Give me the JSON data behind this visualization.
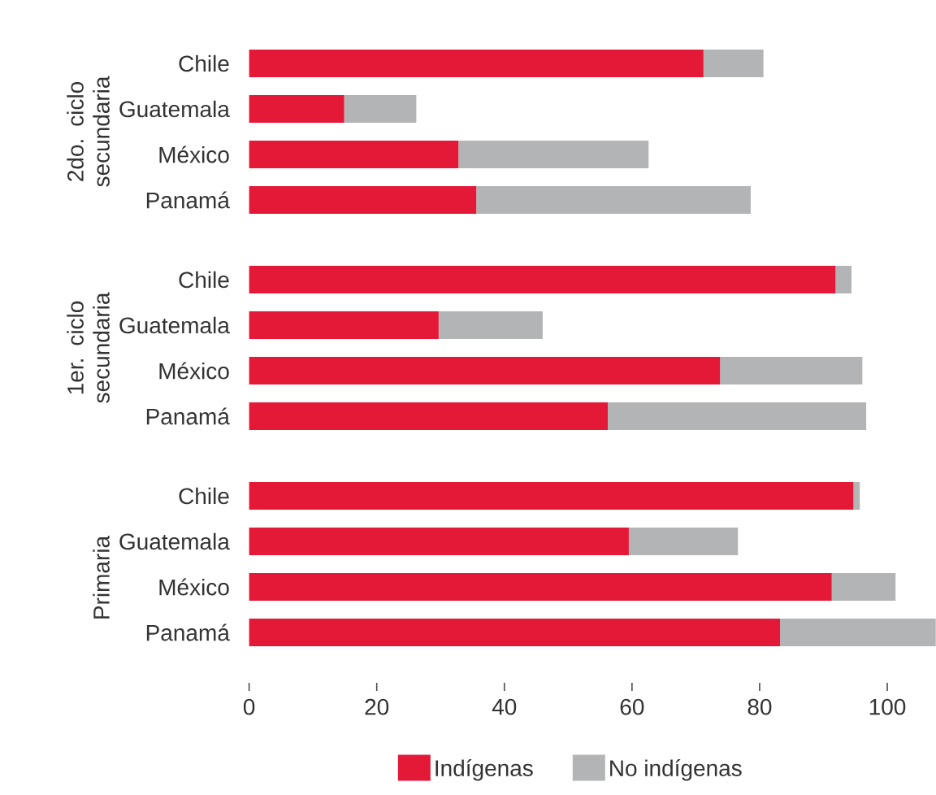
{
  "chart_data": [
    {
      "type": "bar",
      "orientation": "horizontal",
      "stacked": true,
      "ylabel": "2do. ciclo secundaria",
      "categories": [
        "Chile",
        "Guatemala",
        "México",
        "Panamá"
      ],
      "xlim": [
        0,
        100
      ],
      "xticks": [
        0,
        20,
        40,
        60,
        80,
        100
      ],
      "tick_labels": "y",
      "legend": false,
      "series": [
        {
          "color": "#e31937",
          "values": [
            71.2,
            14.9,
            32.8,
            35.6
          ]
        },
        {
          "color": "#b3b4b6",
          "values": [
            9.4,
            11.3,
            29.8,
            43.0
          ]
        }
      ]
    },
    {
      "type": "bar",
      "orientation": "horizontal",
      "stacked": true,
      "ylabel": "1er. ciclo secundaria",
      "categories": [
        "Chile",
        "Guatemala",
        "México",
        "Panamá"
      ],
      "xlim": [
        0,
        100
      ],
      "xticks": [
        0,
        20,
        40,
        60,
        80,
        100
      ],
      "tick_labels": "y",
      "legend": false,
      "series": [
        {
          "color": "#e31937",
          "values": [
            91.9,
            29.7,
            73.8,
            56.2
          ]
        },
        {
          "color": "#b3b4b6",
          "values": [
            2.5,
            16.3,
            22.3,
            40.5
          ]
        }
      ]
    },
    {
      "type": "bar",
      "orientation": "horizontal",
      "stacked": true,
      "ylabel": "Primaria",
      "categories": [
        "Chile",
        "Guatemala",
        "México",
        "Panamá"
      ],
      "xlim": [
        0,
        107.6
      ],
      "xticks": [
        0,
        20,
        40,
        60,
        80,
        100
      ],
      "legend": "bottom",
      "series": [
        {
          "name": "Indígenas",
          "color": "#e31937",
          "values": [
            94.7,
            59.5,
            91.3,
            83.2
          ]
        },
        {
          "name": "No indígenas",
          "color": "#b3b4b6",
          "values": [
            1.0,
            17.1,
            10.0,
            24.4
          ]
        }
      ]
    }
  ]
}
